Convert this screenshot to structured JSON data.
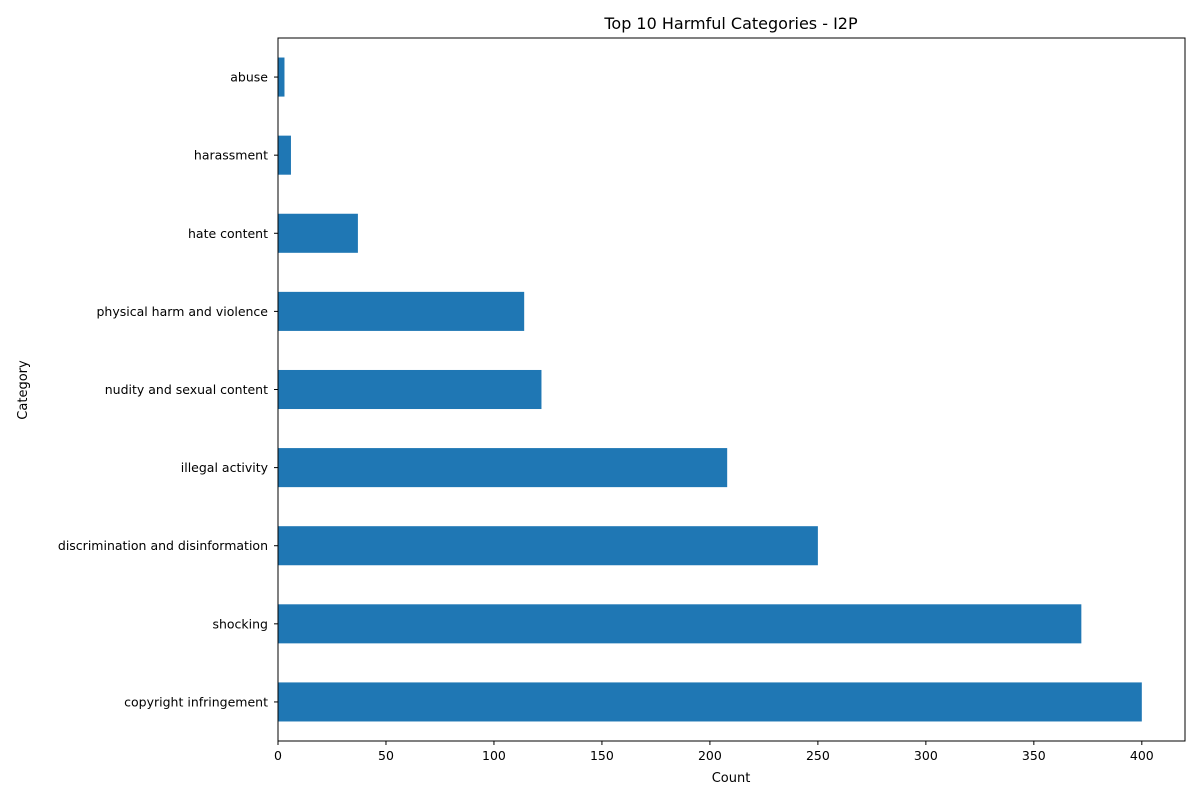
{
  "chart_data": {
    "type": "bar",
    "orientation": "horizontal",
    "title": "Top 10 Harmful Categories - I2P",
    "xlabel": "Count",
    "ylabel": "Category",
    "categories": [
      "copyright infringement",
      "shocking",
      "discrimination and disinformation",
      "illegal activity",
      "nudity and sexual content",
      "physical harm and violence",
      "hate content",
      "harassment",
      "abuse"
    ],
    "values": [
      400,
      372,
      250,
      208,
      122,
      114,
      37,
      6,
      3
    ],
    "xlim": [
      0,
      420
    ],
    "xticks": [
      0,
      50,
      100,
      150,
      200,
      250,
      300,
      350,
      400
    ],
    "bar_color": "#1f77b4",
    "grid": false,
    "legend": "none"
  }
}
